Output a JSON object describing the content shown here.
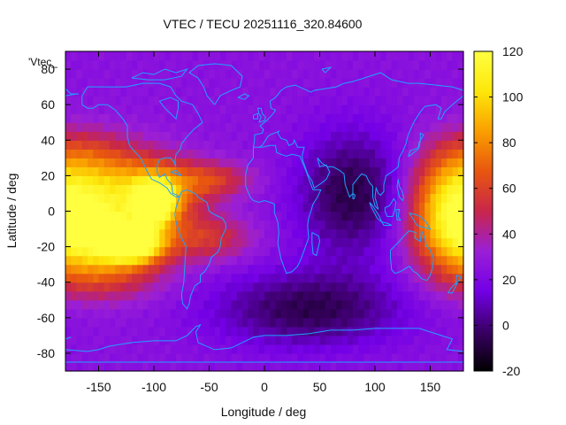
{
  "chart_data": {
    "type": "heatmap",
    "title": "VTEC / TECU 20251116_320.84600",
    "xlabel": "Longitude / deg",
    "ylabel": "Latitude / deg",
    "legend_label": "'Vtec_",
    "xlim": [
      -180,
      180
    ],
    "ylim": [
      -90,
      90
    ],
    "x_ticks": [
      -150,
      -100,
      -50,
      0,
      50,
      100,
      150
    ],
    "y_ticks": [
      -80,
      -60,
      -40,
      -20,
      0,
      20,
      40,
      60,
      80
    ],
    "colorbar": {
      "range": [
        -20,
        120
      ],
      "ticks": [
        -20,
        0,
        20,
        40,
        60,
        80,
        100,
        120
      ],
      "colors": [
        "#000000",
        "#3a0066",
        "#7300e6",
        "#9a1fd6",
        "#c8264a",
        "#e8560f",
        "#fa9f00",
        "#fde70a",
        "#ffff40"
      ]
    },
    "background_level": 25,
    "features": [
      {
        "name": "equatorial-crest-west",
        "lon": -165,
        "lat": 10,
        "value": 92,
        "lon_sigma": 35,
        "lat_sigma": 17
      },
      {
        "name": "americas-crest",
        "lon": -100,
        "lat": 12,
        "value": 85,
        "lon_sigma": 30,
        "lat_sigma": 13
      },
      {
        "name": "south-pacific-crest",
        "lon": -150,
        "lat": -16,
        "value": 98,
        "lon_sigma": 40,
        "lat_sigma": 13
      },
      {
        "name": "peak-central-america",
        "lon": -98,
        "lat": 5,
        "value": 110,
        "lon_sigma": 12,
        "lat_sigma": 8
      },
      {
        "name": "peak-south-pacific",
        "lon": -118,
        "lat": -18,
        "value": 108,
        "lon_sigma": 18,
        "lat_sigma": 7
      },
      {
        "name": "atlantic-north-band",
        "lon": -45,
        "lat": 18,
        "value": 55,
        "lon_sigma": 25,
        "lat_sigma": 7
      },
      {
        "name": "atlantic-south-band",
        "lon": -50,
        "lat": -15,
        "value": 55,
        "lon_sigma": 28,
        "lat_sigma": 9
      },
      {
        "name": "west-pacific-block",
        "lon": 165,
        "lat": 0,
        "value": 68,
        "lon_sigma": 25,
        "lat_sigma": 22
      },
      {
        "name": "south-pacific-lobe",
        "lon": -150,
        "lat": -38,
        "value": 50,
        "lon_sigma": 40,
        "lat_sigma": 10
      },
      {
        "name": "north-pacific-lobe",
        "lon": -160,
        "lat": 35,
        "value": 40,
        "lon_sigma": 35,
        "lat_sigma": 10
      },
      {
        "name": "indian-low",
        "lon": 80,
        "lat": 10,
        "value": -10,
        "lon_sigma": 35,
        "lat_sigma": 25
      },
      {
        "name": "southern-low",
        "lon": 40,
        "lat": -55,
        "value": -8,
        "lon_sigma": 60,
        "lat_sigma": 15
      }
    ]
  }
}
